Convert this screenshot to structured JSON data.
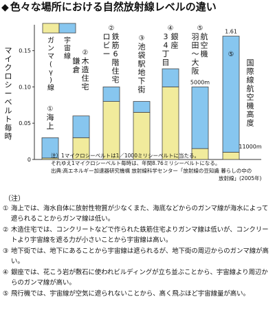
{
  "title": "色々な場所における自然放射線レベルの違い",
  "chart_data": {
    "type": "bar",
    "stacked": true,
    "ylabel": "マイクロシーベルト毎時",
    "ylim": [
      0,
      0.18
    ],
    "yticks": [
      "0",
      "0.05",
      "0.10",
      "0.15"
    ],
    "grid": false,
    "legend_position": "top-left",
    "series": [
      {
        "name": "ガンマ(γ)線",
        "color": "#f1eb9c",
        "values": [
          0.002,
          0.03,
          0.08,
          0.065,
          0.1,
          0.015,
          0.01
        ]
      },
      {
        "name": "宇宙線",
        "color": "#87c6ef",
        "values": [
          0.028,
          0.03,
          0.02,
          0.015,
          0.025,
          0.085,
          0.16
        ]
      }
    ],
    "categories": [
      {
        "num": "①",
        "label": "海上"
      },
      {
        "num": "②",
        "label": "木造住宅 鎌倉"
      },
      {
        "num": "②",
        "label": "鉄筋6階住宅 ロビー"
      },
      {
        "num": "③",
        "label": "池袋駅地下街"
      },
      {
        "num": "④",
        "label": "銀座 34丁目"
      },
      {
        "num": "⑤",
        "label": "航空機 羽田〜大阪",
        "sublabel": "5000m"
      },
      {
        "num": "⑤",
        "label": "国際線航空機高度",
        "sublabel": "11000m"
      }
    ],
    "annotations": [
      {
        "category_index": 6,
        "text": "1.61"
      }
    ]
  },
  "footnotes": [
    "注）1マイクロシーベルトは1／1000ミリシーベルトに当たる。",
    "それゆえ1マイクロシーベルト毎時は、年間8.76ミリシーベルトになる。",
    "出典:高エネルギー加速器研究機構 放射線科学センター「放射線の豆知識 暮らしの中の",
    "放射線」(2005年)"
  ],
  "notes_header": "（注）",
  "notes": [
    {
      "num": "①",
      "text": "海上では、海水自体に放射性物質が少なくまた、海底などからのガンマ線が海水によって遮られることからガンマ線は低い。"
    },
    {
      "num": "②",
      "text": "木造住宅では、コンクリートなどで作られた鉄筋住宅よりガンマ線は低いが、コンクリートより宇宙線を遮る力が小さいことから宇宙線は高い。"
    },
    {
      "num": "③",
      "text": "地下街では、地下にあることから宇宙線は遮られるが、地下街の周辺からのガンマ線が高い。"
    },
    {
      "num": "④",
      "text": "銀座では、花こう岩が敷石に使われビルディングが立ち並ぶことから、宇宙線より周辺からのガンマ線が高い。"
    },
    {
      "num": "⑤",
      "text": "飛行機では、宇宙線が空気に遮られないことから、高く飛ぶほど宇宙線量が高い。"
    }
  ]
}
